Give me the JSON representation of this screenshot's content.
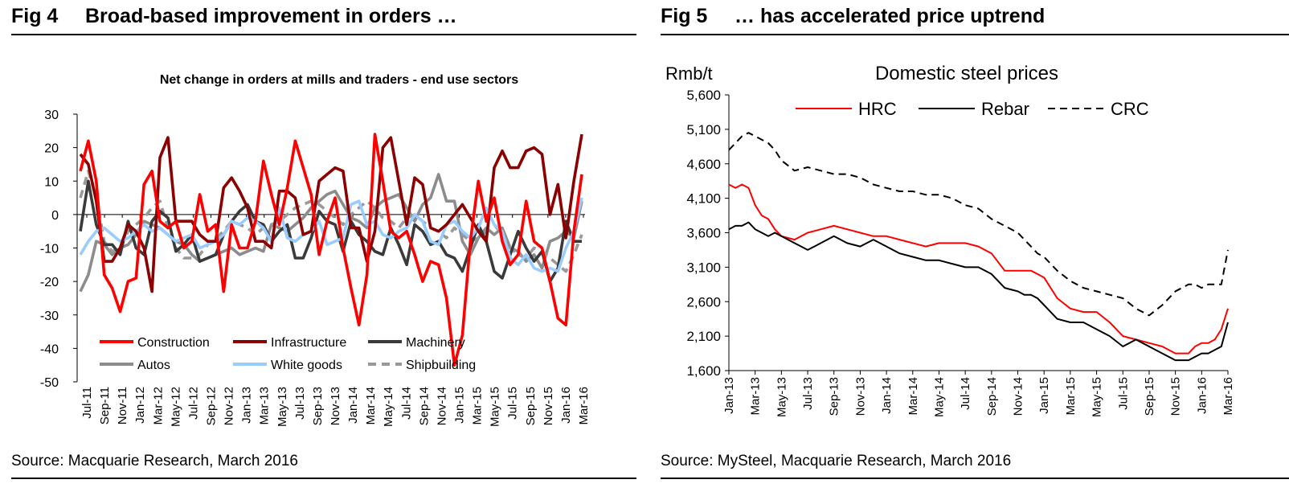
{
  "figures": [
    {
      "fig_label": "Fig 4",
      "fig_title": "Broad-based improvement in orders …",
      "source": "Source: Macquarie Research, March 2016"
    },
    {
      "fig_label": "Fig 5",
      "fig_title": "… has accelerated price uptrend",
      "source": "Source: MySteel, Macquarie Research, March 2016"
    }
  ],
  "chart_data": [
    {
      "type": "line",
      "title": "Net change in orders at mills and traders - end use sectors",
      "xlabel": "",
      "ylabel": "",
      "ylim": [
        -50,
        30
      ],
      "yticks": [
        30,
        20,
        10,
        0,
        -10,
        -20,
        -30,
        -40,
        -50
      ],
      "x_tick_labels": [
        "Jul-11",
        "Sep-11",
        "Nov-11",
        "Jan-12",
        "Mar-12",
        "May-12",
        "Jul-12",
        "Sep-12",
        "Nov-12",
        "Jan-13",
        "Mar-13",
        "May-13",
        "Jul-13",
        "Sep-13",
        "Nov-13",
        "Jan-14",
        "Mar-14",
        "May-14",
        "Jul-14",
        "Sep-14",
        "Nov-14",
        "Jan-15",
        "Mar-15",
        "May-15",
        "Jul-15",
        "Sep-15",
        "Nov-15",
        "Jan-16",
        "Mar-16"
      ],
      "grid": false,
      "legend": "bottom-inside",
      "series": [
        {
          "name": "Construction",
          "color": "#ff0000",
          "dash": "solid",
          "values": [
            13,
            22,
            10,
            -18,
            -22,
            -29,
            -20,
            -19,
            9,
            13,
            -2,
            -4,
            -2,
            -10,
            -8,
            6,
            -5,
            -3,
            -23,
            -3,
            -10,
            -10,
            -2,
            16,
            6,
            -3,
            8,
            22,
            14,
            6,
            -12,
            -2,
            5,
            -10,
            -22,
            -33,
            -18,
            24,
            10,
            -5,
            -7,
            -5,
            -12,
            -20,
            -14,
            -15,
            -25,
            -45,
            -36,
            -8,
            10,
            -2,
            5,
            -8,
            -15,
            -12,
            4,
            -8,
            -10,
            -20,
            -31,
            -33,
            -5,
            12
          ]
        },
        {
          "name": "Infrastructure",
          "color": "#8b0000",
          "dash": "solid",
          "values": [
            18,
            15,
            4,
            -14,
            -14,
            -10,
            -3,
            -5,
            -10,
            -23,
            17,
            23,
            -2,
            -2,
            -2,
            -6,
            -8,
            -8,
            8,
            11,
            7,
            2,
            -8,
            -8,
            -10,
            7,
            7,
            5,
            -6,
            -5,
            10,
            12,
            14,
            13,
            -4,
            -4,
            -14,
            -5,
            20,
            23,
            10,
            -3,
            11,
            9,
            -4,
            -5,
            -3,
            0,
            3,
            -1,
            -5,
            -8,
            14,
            19,
            14,
            14,
            19,
            20,
            18,
            0,
            9,
            -7,
            10,
            24
          ]
        },
        {
          "name": "Machinery",
          "color": "#3a3a3a",
          "dash": "solid",
          "values": [
            -5,
            10,
            -3,
            -9,
            -9,
            -12,
            -2,
            -10,
            -12,
            -2,
            1,
            -1,
            -11,
            -9,
            -6,
            -14,
            -13,
            -12,
            -6,
            -2,
            1,
            3,
            -2,
            -3,
            -8,
            -5,
            -3,
            -13,
            -13,
            -7,
            1,
            -2,
            -3,
            -11,
            -2,
            -6,
            -8,
            -11,
            -12,
            -4,
            -9,
            -15,
            -3,
            -5,
            -9,
            -8,
            -12,
            -13,
            -17,
            -10,
            -3,
            -8,
            -17,
            -19,
            -12,
            -5,
            -10,
            -14,
            -11,
            -20,
            -16,
            -2,
            -8,
            -8
          ]
        },
        {
          "name": "Autos",
          "color": "#8c8c8c",
          "dash": "solid",
          "values": [
            -23,
            -18,
            -8,
            -9,
            -12,
            -10,
            -9,
            -6,
            -2,
            -3,
            -4,
            -6,
            -8,
            -9,
            -12,
            -14,
            -13,
            -12,
            -11,
            -10,
            -12,
            -11,
            -10,
            -11,
            -3,
            -4,
            -5,
            -3,
            -1,
            2,
            4,
            6,
            7,
            3,
            -1,
            -2,
            -4,
            2,
            4,
            5,
            6,
            2,
            -2,
            3,
            5,
            12,
            4,
            4,
            -8,
            -12,
            -7,
            -4,
            -6,
            -4,
            -10,
            -11,
            -14,
            -12,
            -16,
            -8,
            -7,
            -5,
            -7,
            4
          ]
        },
        {
          "name": "White goods",
          "color": "#99ccff",
          "dash": "solid",
          "values": [
            -12,
            -8,
            -5,
            -4,
            -6,
            -8,
            -7,
            -5,
            -3,
            -5,
            -4,
            -6,
            -8,
            -7,
            -6,
            -10,
            -9,
            -8,
            -6,
            -2,
            -3,
            -1,
            -2,
            -4,
            -8,
            2,
            -7,
            -8,
            -6,
            -5,
            -2,
            -9,
            -8,
            -7,
            3,
            4,
            -3,
            -2,
            -6,
            -7,
            -5,
            -4,
            0,
            -2,
            -8,
            -9,
            -3,
            -2,
            -5,
            -7,
            -4,
            2,
            -3,
            -5,
            -13,
            -15,
            -12,
            -16,
            -17,
            -16,
            -17,
            -10,
            -5,
            5
          ]
        },
        {
          "name": "Shipbuilding",
          "color": "#999999",
          "dash": "dashed",
          "values": [
            5,
            13,
            5,
            -8,
            -11,
            -10,
            -5,
            -3,
            -1,
            2,
            4,
            -4,
            -10,
            -13,
            -13,
            -12,
            -9,
            -7,
            -5,
            -2,
            -3,
            -4,
            -6,
            -4,
            -3,
            -2,
            0,
            2,
            3,
            4,
            3,
            1,
            -1,
            -3,
            0,
            2,
            4,
            2,
            -1,
            -2,
            -4,
            -1,
            0,
            -2,
            -4,
            -5,
            -7,
            -4,
            -6,
            -8,
            -7,
            -5,
            -3,
            -6,
            -10,
            -12,
            -13,
            -10,
            -11,
            -13,
            -15,
            -17,
            -12,
            -6
          ]
        }
      ]
    },
    {
      "type": "line",
      "title": "Domestic steel prices",
      "xlabel": "",
      "ylabel": "Rmb/t",
      "ylim": [
        1600,
        5600
      ],
      "yticks": [
        "5,600",
        "5,100",
        "4,600",
        "4,100",
        "3,600",
        "3,100",
        "2,600",
        "2,100",
        "1,600"
      ],
      "x_tick_labels": [
        "Jan-13",
        "Mar-13",
        "May-13",
        "Jul-13",
        "Sep-13",
        "Nov-13",
        "Jan-14",
        "Mar-14",
        "May-14",
        "Jul-14",
        "Sep-14",
        "Nov-14",
        "Jan-15",
        "Mar-15",
        "May-15",
        "Jul-15",
        "Sep-15",
        "Nov-15",
        "Jan-16",
        "Mar-16"
      ],
      "grid": false,
      "legend": "top",
      "x_range": [
        0,
        38
      ],
      "series": [
        {
          "name": "HRC",
          "color": "#ff0000",
          "dash": "solid",
          "x": [
            0,
            0.5,
            1,
            1.5,
            2,
            2.5,
            3,
            3.5,
            4,
            5,
            6,
            7,
            8,
            9,
            10,
            11,
            12,
            13,
            14,
            15,
            16,
            17,
            18,
            19,
            20,
            21,
            22,
            22.5,
            23,
            23.5,
            24,
            25,
            26,
            27,
            28,
            29,
            30,
            31,
            32,
            33,
            34,
            35,
            35.5,
            36,
            36.5,
            37,
            37.5,
            38
          ],
          "values": [
            4300,
            4250,
            4300,
            4250,
            4000,
            3850,
            3800,
            3650,
            3550,
            3500,
            3600,
            3650,
            3700,
            3650,
            3600,
            3550,
            3550,
            3500,
            3450,
            3400,
            3450,
            3450,
            3450,
            3400,
            3300,
            3050,
            3050,
            3050,
            3050,
            3000,
            2950,
            2650,
            2500,
            2450,
            2450,
            2300,
            2100,
            2050,
            2000,
            1950,
            1850,
            1850,
            1950,
            2000,
            2000,
            2050,
            2200,
            2500
          ]
        },
        {
          "name": "Rebar",
          "color": "#000000",
          "dash": "solid",
          "x": [
            0,
            0.5,
            1,
            1.5,
            2,
            2.5,
            3,
            3.5,
            4,
            5,
            6,
            7,
            8,
            9,
            10,
            11,
            12,
            13,
            14,
            15,
            16,
            17,
            18,
            19,
            20,
            21,
            22,
            22.5,
            23,
            23.5,
            24,
            25,
            26,
            27,
            28,
            29,
            30,
            31,
            32,
            33,
            34,
            34.5,
            35,
            35.5,
            36,
            36.5,
            37,
            37.5,
            38
          ],
          "values": [
            3650,
            3700,
            3700,
            3750,
            3650,
            3600,
            3550,
            3600,
            3550,
            3450,
            3350,
            3450,
            3550,
            3450,
            3400,
            3500,
            3400,
            3300,
            3250,
            3200,
            3200,
            3150,
            3100,
            3100,
            3000,
            2800,
            2750,
            2700,
            2700,
            2650,
            2550,
            2350,
            2300,
            2300,
            2200,
            2100,
            1950,
            2050,
            1950,
            1850,
            1750,
            1750,
            1750,
            1800,
            1850,
            1850,
            1900,
            1950,
            2300
          ]
        },
        {
          "name": "CRC",
          "color": "#000000",
          "dash": "dashed",
          "x": [
            0,
            0.5,
            1,
            1.5,
            2,
            2.5,
            3,
            3.5,
            4,
            5,
            6,
            7,
            8,
            9,
            10,
            11,
            12,
            13,
            14,
            15,
            16,
            17,
            18,
            19,
            20,
            21,
            22,
            22.5,
            23,
            23.5,
            24,
            25,
            26,
            27,
            28,
            29,
            30,
            31,
            32,
            33,
            34,
            35,
            35.5,
            36,
            36.5,
            37,
            37.5,
            38
          ],
          "values": [
            4800,
            4900,
            5000,
            5050,
            5000,
            4950,
            4900,
            4800,
            4650,
            4500,
            4550,
            4500,
            4450,
            4450,
            4400,
            4300,
            4250,
            4200,
            4200,
            4150,
            4150,
            4100,
            4000,
            3950,
            3800,
            3700,
            3600,
            3500,
            3400,
            3300,
            3250,
            3050,
            2900,
            2800,
            2750,
            2700,
            2650,
            2500,
            2400,
            2550,
            2750,
            2850,
            2850,
            2800,
            2850,
            2850,
            2850,
            3350
          ]
        }
      ]
    }
  ]
}
